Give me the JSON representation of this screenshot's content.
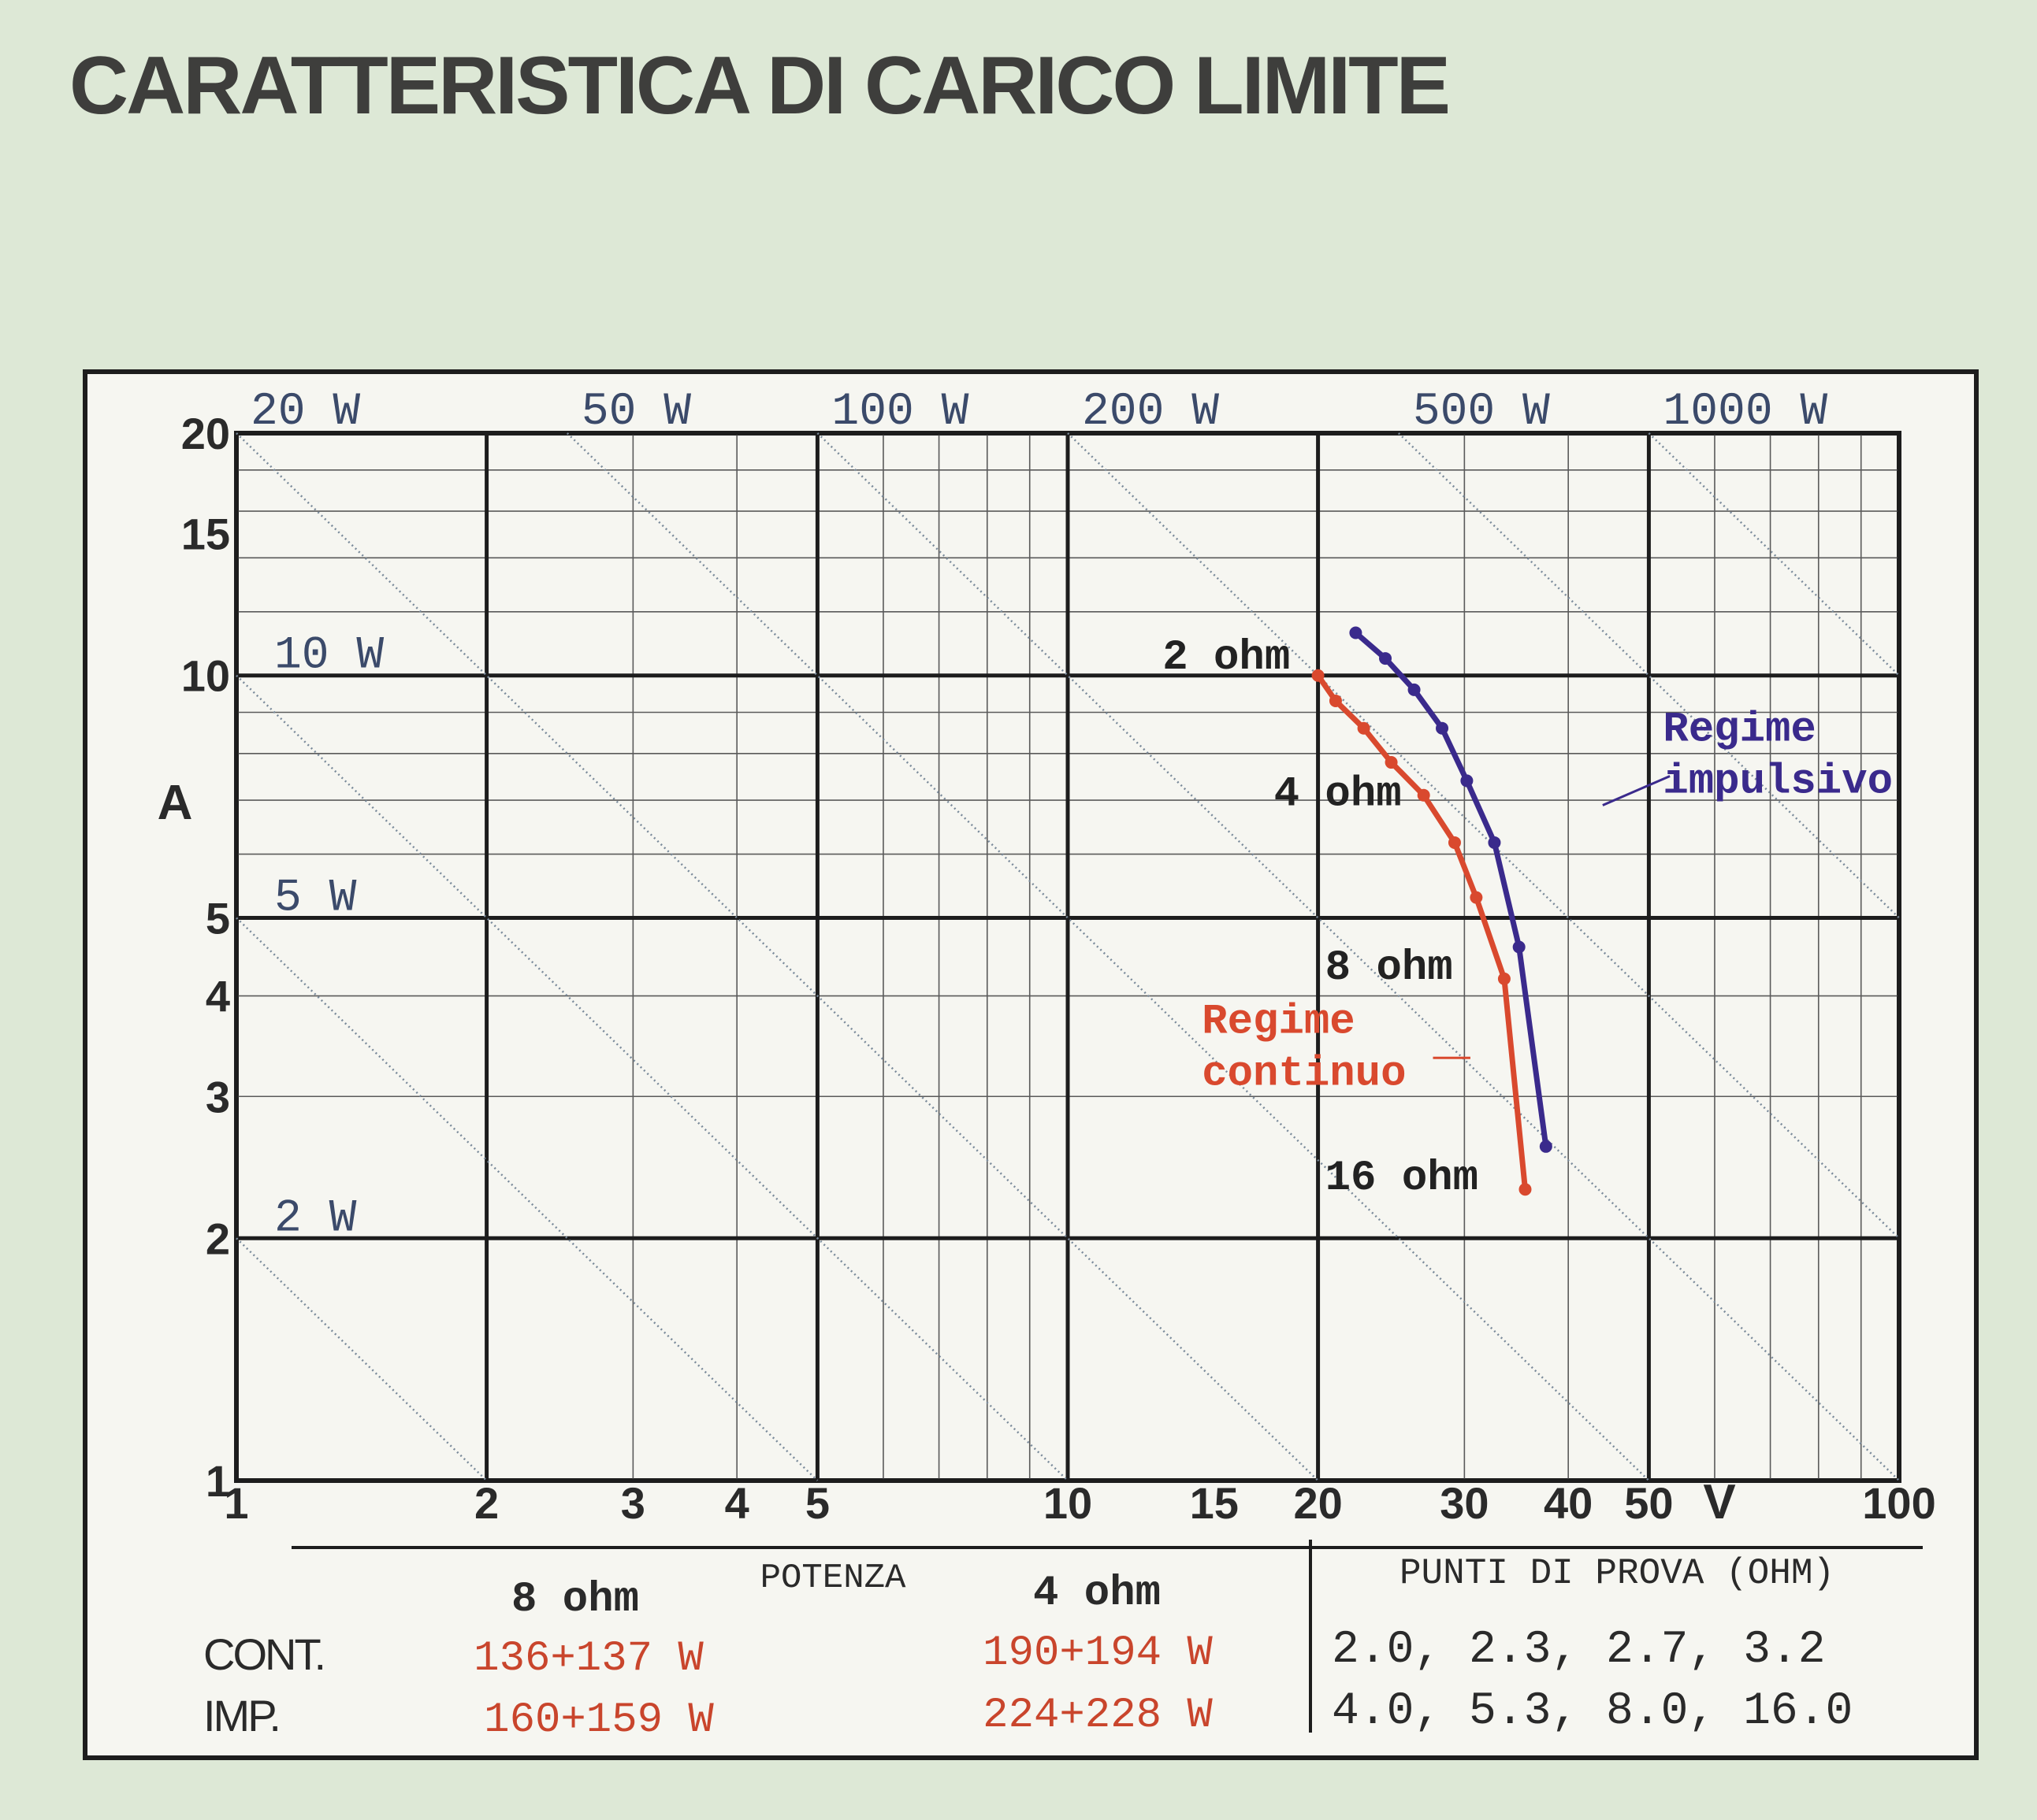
{
  "title": "CARATTERISTICA DI CARICO LIMITE",
  "colors": {
    "background": "#dde8d6",
    "plot_background": "#f6f6f1",
    "continuo": "#d9492e",
    "impulsivo": "#3a2a8c",
    "text": "#2a2a2a"
  },
  "chart_data": {
    "type": "line",
    "xscale": "log",
    "yscale": "log",
    "xlim": [
      1,
      100
    ],
    "ylim": [
      1,
      20
    ],
    "xlabel": "V",
    "ylabel": "A",
    "grid": true,
    "x_ticks": [
      {
        "value": 1,
        "label": "1"
      },
      {
        "value": 2,
        "label": "2"
      },
      {
        "value": 3,
        "label": "3"
      },
      {
        "value": 4,
        "label": "4"
      },
      {
        "value": 5,
        "label": "5"
      },
      {
        "value": 10,
        "label": "10"
      },
      {
        "value": 15,
        "label": "15"
      },
      {
        "value": 20,
        "label": "20"
      },
      {
        "value": 30,
        "label": "30"
      },
      {
        "value": 40,
        "label": "40"
      },
      {
        "value": 50,
        "label": "50"
      },
      {
        "value": 100,
        "label": "100"
      }
    ],
    "y_ticks": [
      {
        "value": 1,
        "label": "1"
      },
      {
        "value": 2,
        "label": "2"
      },
      {
        "value": 3,
        "label": "3"
      },
      {
        "value": 4,
        "label": "4"
      },
      {
        "value": 5,
        "label": "5"
      },
      {
        "value": 10,
        "label": "10"
      },
      {
        "value": 15,
        "label": "15"
      },
      {
        "value": 20,
        "label": "20"
      }
    ],
    "power_lines": [
      {
        "watts": 2,
        "label": "2 W"
      },
      {
        "watts": 5,
        "label": "5 W"
      },
      {
        "watts": 10,
        "label": "10 W"
      },
      {
        "watts": 20,
        "label": "20 W"
      },
      {
        "watts": 50,
        "label": "50 W"
      },
      {
        "watts": 100,
        "label": "100 W"
      },
      {
        "watts": 200,
        "label": "200 W"
      },
      {
        "watts": 500,
        "label": "500 W"
      },
      {
        "watts": 1000,
        "label": "1000 W"
      }
    ],
    "series": [
      {
        "name": "Regime continuo",
        "color": "#d9492e",
        "points": [
          {
            "x": 20,
            "y": 10
          },
          {
            "x": 21,
            "y": 9.3
          },
          {
            "x": 22.7,
            "y": 8.6
          },
          {
            "x": 24.5,
            "y": 7.8
          },
          {
            "x": 26.8,
            "y": 7.1
          },
          {
            "x": 29.2,
            "y": 6.2
          },
          {
            "x": 31,
            "y": 5.3
          },
          {
            "x": 33.5,
            "y": 4.2
          },
          {
            "x": 35.5,
            "y": 2.3
          }
        ]
      },
      {
        "name": "Regime impulsivo",
        "color": "#3a2a8c",
        "points": [
          {
            "x": 22.2,
            "y": 11.3
          },
          {
            "x": 24.1,
            "y": 10.5
          },
          {
            "x": 26.1,
            "y": 9.6
          },
          {
            "x": 28.2,
            "y": 8.6
          },
          {
            "x": 30.2,
            "y": 7.4
          },
          {
            "x": 32.6,
            "y": 6.2
          },
          {
            "x": 34.9,
            "y": 4.6
          },
          {
            "x": 37.6,
            "y": 2.6
          }
        ]
      }
    ],
    "annotations": [
      {
        "text": "2 ohm",
        "x": 13,
        "y": 10.2
      },
      {
        "text": "4 ohm",
        "x": 17.7,
        "y": 6.9
      },
      {
        "text": "8 ohm",
        "x": 20.4,
        "y": 4.2
      },
      {
        "text": "16 ohm",
        "x": 20.4,
        "y": 2.3
      }
    ],
    "series_labels": [
      {
        "series": 1,
        "lines": [
          "Regime",
          "impulsivo"
        ],
        "x": 52,
        "y": 8.3
      },
      {
        "series": 0,
        "lines": [
          "Regime",
          "continuo"
        ],
        "x": 14.5,
        "y": 3.6
      }
    ]
  },
  "table": {
    "header_potenza": "POTENZA",
    "header_8ohm": "8 ohm",
    "header_4ohm": "4 ohm",
    "header_punti": "PUNTI DI PROVA (OHM)",
    "rows": [
      {
        "label": "CONT.",
        "w8": "136+137 W",
        "w4": "190+194 W",
        "punti": "2.0, 2.3, 2.7, 3.2"
      },
      {
        "label": "IMP.",
        "w8": "160+159 W",
        "w4": "224+228 W",
        "punti": "4.0, 5.3, 8.0, 16.0"
      }
    ]
  }
}
